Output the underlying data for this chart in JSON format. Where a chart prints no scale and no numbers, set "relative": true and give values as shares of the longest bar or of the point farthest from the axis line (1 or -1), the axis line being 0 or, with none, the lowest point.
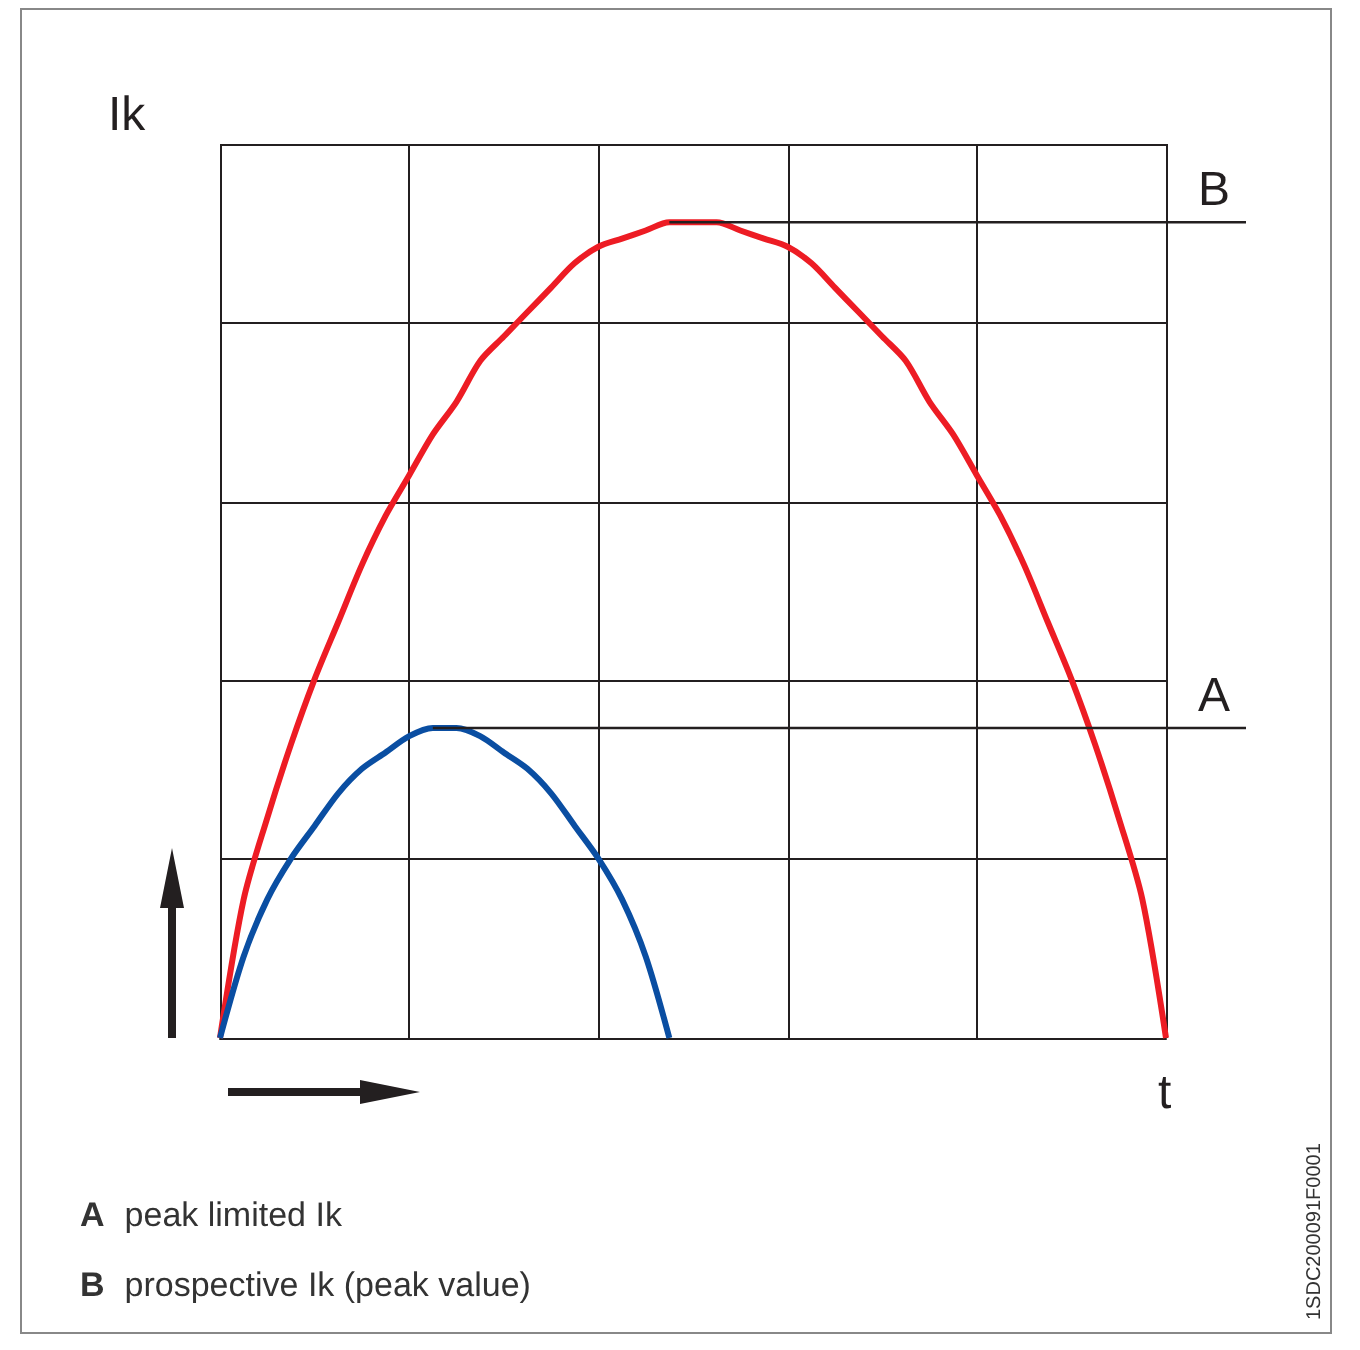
{
  "chart_data": {
    "type": "line",
    "relative": true,
    "ylabel": "Ik",
    "xlabel": "t",
    "grid": true,
    "marker": "none",
    "line_style": "solid",
    "categories": [
      null,
      null,
      null,
      null,
      null,
      null,
      null,
      null,
      null,
      null,
      null,
      null,
      null,
      null,
      null,
      null,
      null,
      null,
      null,
      null,
      null,
      null,
      null,
      null,
      null,
      null,
      null,
      null,
      null,
      null,
      null,
      null,
      null,
      null,
      null,
      null,
      null,
      null,
      null,
      null,
      null
    ],
    "series": [
      {
        "color": "#ed1c24",
        "values": [
          0,
          0.17,
          0.27,
          0.36,
          0.44,
          0.51,
          0.58,
          0.64,
          0.69,
          0.74,
          0.78,
          0.83,
          0.86,
          0.89,
          0.92,
          0.95,
          0.97,
          0.98,
          0.99,
          1,
          1,
          1,
          0.99,
          0.98,
          0.97,
          0.95,
          0.92,
          0.89,
          0.86,
          0.83,
          0.78,
          0.74,
          0.69,
          0.64,
          0.58,
          0.51,
          0.44,
          0.36,
          0.27,
          0.17,
          0
        ]
      },
      {
        "color": "#0a4ea2",
        "values": [
          0,
          0.1,
          0.17,
          0.22,
          0.26,
          0.3,
          0.33,
          0.35,
          0.37,
          0.38,
          0.38,
          0.37,
          0.35,
          0.33,
          0.3,
          0.26,
          0.22,
          0.17,
          0.1,
          0,
          null,
          null,
          null,
          null,
          null,
          null,
          null,
          null,
          null,
          null,
          null,
          null,
          null,
          null,
          null,
          null,
          null,
          null,
          null,
          null,
          null
        ]
      }
    ],
    "ref_lines": [
      {
        "axis": "y",
        "value": 0.38,
        "label": "A",
        "color": "#231f20"
      },
      {
        "axis": "y",
        "value": 1,
        "label": "B",
        "color": "#231f20"
      }
    ],
    "annotations": [
      "A peak limited Ik",
      "B prospective Ik (peak value)",
      "1SDC200091F0001"
    ]
  }
}
